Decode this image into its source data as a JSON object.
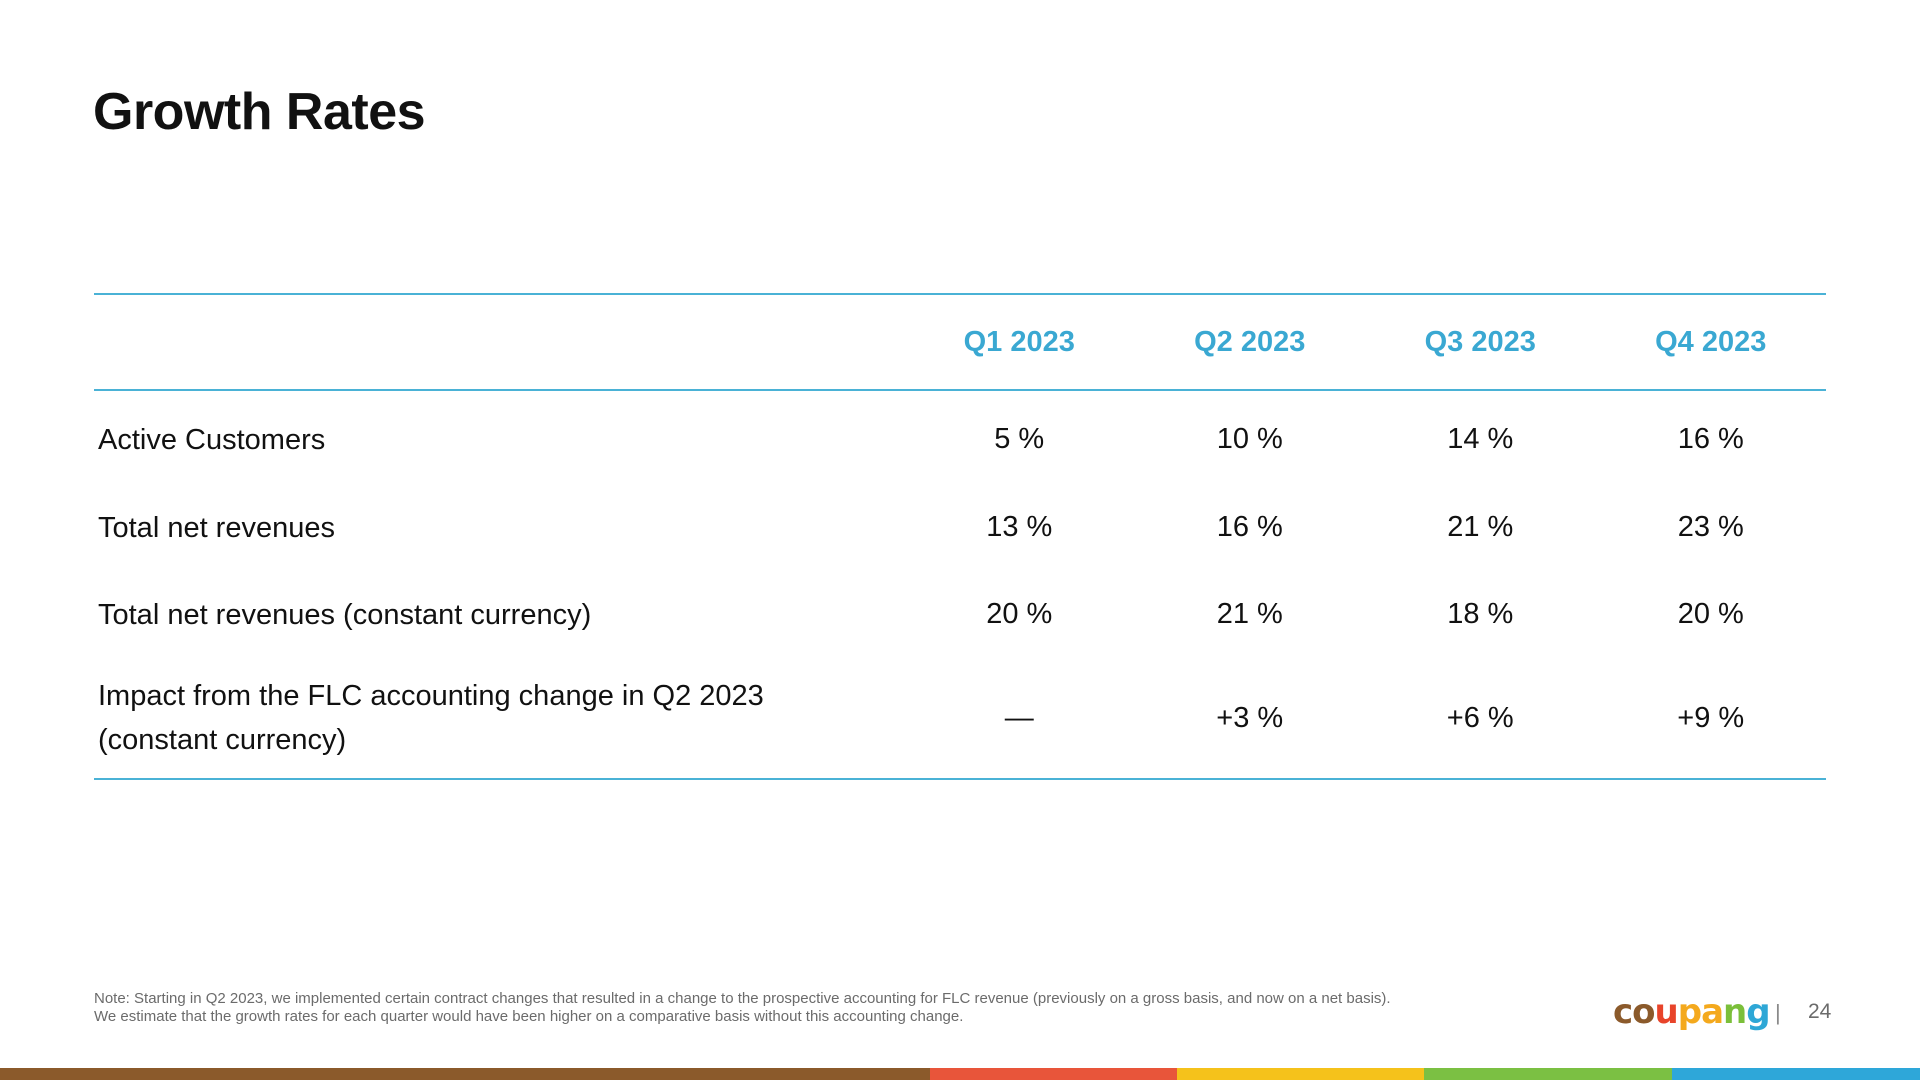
{
  "slide": {
    "title": "Growth Rates",
    "page_number": "24",
    "separator": "|"
  },
  "table": {
    "headers": [
      "",
      "Q1 2023",
      "Q2 2023",
      "Q3 2023",
      "Q4 2023"
    ],
    "rows": [
      {
        "label": "Active Customers",
        "values": [
          "5 %",
          "10 %",
          "14 %",
          "16 %"
        ]
      },
      {
        "label": "Total net revenues",
        "values": [
          "13 %",
          "16 %",
          "21 %",
          "23 %"
        ]
      },
      {
        "label": "Total net revenues (constant currency)",
        "values": [
          "20 %",
          "21 %",
          "18 %",
          "20 %"
        ]
      },
      {
        "label_line1": "Impact from the FLC accounting change in Q2 2023",
        "label_line2": "(constant currency)",
        "values": [
          "—",
          "+3 %",
          "+6 %",
          "+9 %"
        ]
      }
    ]
  },
  "note": {
    "line1": "Note: Starting in Q2 2023, we implemented certain contract changes that resulted in a change to the prospective accounting for FLC revenue (previously on a gross basis, and now on a net basis).",
    "line2": "We estimate that the growth rates for each quarter would have been higher on a comparative basis without this accounting change."
  },
  "logo": {
    "letters": [
      "c",
      "o",
      "u",
      "p",
      "a",
      "n",
      "g"
    ],
    "letter_colors": [
      "#8b5a2b",
      "#8b5a2b",
      "#e8442a",
      "#f4a91d",
      "#f4a91d",
      "#7bbf3a",
      "#2ea7d6"
    ]
  },
  "colors": {
    "accent": "#3aa8d2",
    "rule": "#4ab2d6",
    "bar": [
      "#8b5a2b",
      "#e8553a",
      "#f5c21b",
      "#7bc043",
      "#2ea7d9"
    ]
  }
}
